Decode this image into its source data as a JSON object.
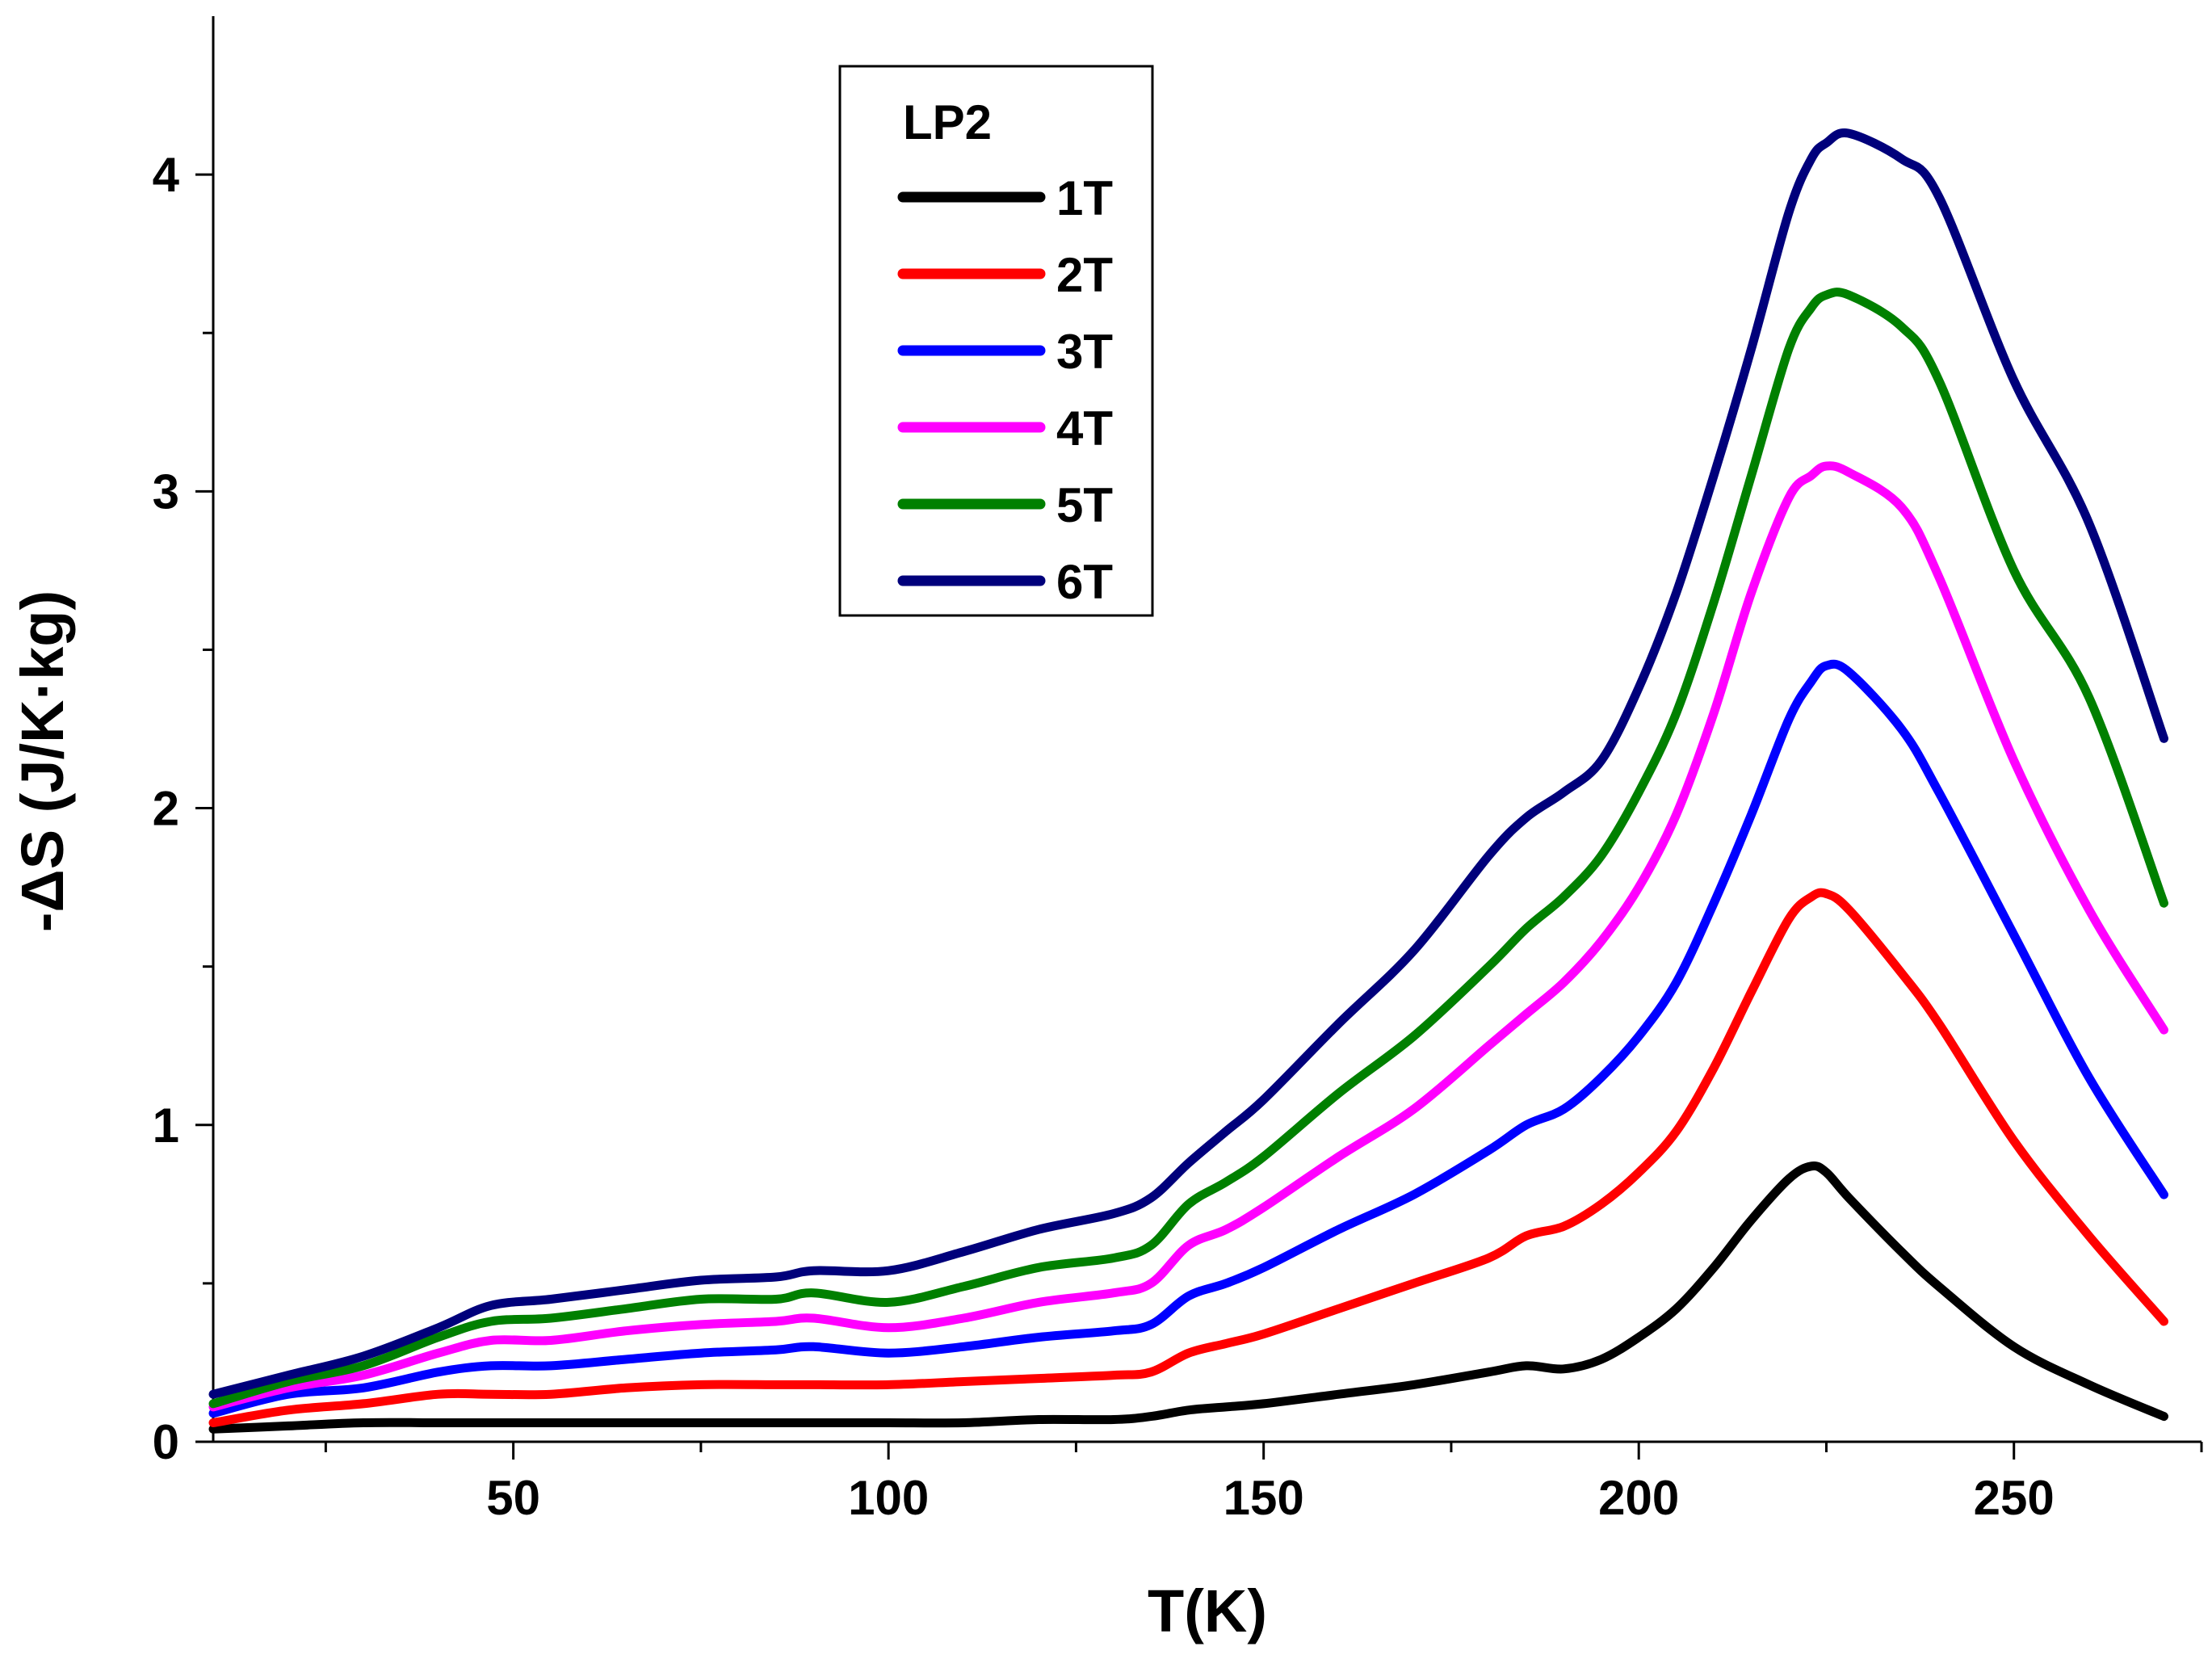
{
  "chart_data": {
    "type": "line",
    "title": "",
    "xlabel": "T(K)",
    "ylabel": "-ΔS (J/K·kg)",
    "xlim": [
      10,
      275
    ],
    "ylim": [
      0,
      4.5
    ],
    "xticks": [
      50,
      100,
      150,
      200,
      250
    ],
    "yticks": [
      0,
      1,
      2,
      3,
      4
    ],
    "xtick_labels": [
      "50",
      "100",
      "150",
      "200",
      "250"
    ],
    "ytick_labels": [
      "0",
      "1",
      "2",
      "3",
      "4"
    ],
    "grid": false,
    "legend": {
      "title": "LP2",
      "position": "top-center"
    },
    "x": [
      10,
      20,
      30,
      40,
      47,
      55,
      65,
      75,
      85,
      90,
      100,
      110,
      120,
      130,
      135,
      140,
      145,
      150,
      160,
      170,
      180,
      185,
      190,
      195,
      200,
      205,
      210,
      215,
      220,
      223,
      225,
      228,
      235,
      240,
      250,
      260,
      270
    ],
    "series": [
      {
        "name": "1T",
        "color": "#000000",
        "values": [
          0.04,
          0.05,
          0.06,
          0.06,
          0.06,
          0.06,
          0.06,
          0.06,
          0.06,
          0.06,
          0.06,
          0.06,
          0.07,
          0.07,
          0.08,
          0.1,
          0.11,
          0.12,
          0.15,
          0.18,
          0.22,
          0.24,
          0.23,
          0.26,
          0.33,
          0.42,
          0.55,
          0.7,
          0.83,
          0.87,
          0.85,
          0.77,
          0.6,
          0.49,
          0.3,
          0.18,
          0.08
        ]
      },
      {
        "name": "2T",
        "color": "#ff0000",
        "values": [
          0.06,
          0.1,
          0.12,
          0.15,
          0.15,
          0.15,
          0.17,
          0.18,
          0.18,
          0.18,
          0.18,
          0.19,
          0.2,
          0.21,
          0.22,
          0.28,
          0.31,
          0.34,
          0.42,
          0.5,
          0.58,
          0.65,
          0.68,
          0.75,
          0.85,
          0.98,
          1.18,
          1.42,
          1.65,
          1.72,
          1.73,
          1.68,
          1.48,
          1.32,
          0.95,
          0.65,
          0.38
        ]
      },
      {
        "name": "3T",
        "color": "#0000ff",
        "values": [
          0.09,
          0.15,
          0.17,
          0.22,
          0.24,
          0.24,
          0.26,
          0.28,
          0.29,
          0.3,
          0.28,
          0.3,
          0.33,
          0.35,
          0.37,
          0.46,
          0.5,
          0.55,
          0.67,
          0.78,
          0.92,
          1.0,
          1.05,
          1.15,
          1.28,
          1.45,
          1.7,
          1.98,
          2.28,
          2.4,
          2.45,
          2.43,
          2.25,
          2.05,
          1.6,
          1.15,
          0.78
        ]
      },
      {
        "name": "4T",
        "color": "#ff00ff",
        "values": [
          0.11,
          0.17,
          0.21,
          0.28,
          0.32,
          0.32,
          0.35,
          0.37,
          0.38,
          0.39,
          0.36,
          0.39,
          0.44,
          0.47,
          0.5,
          0.62,
          0.67,
          0.74,
          0.9,
          1.05,
          1.25,
          1.35,
          1.45,
          1.58,
          1.75,
          1.98,
          2.3,
          2.68,
          2.98,
          3.05,
          3.08,
          3.06,
          2.95,
          2.73,
          2.15,
          1.68,
          1.3
        ]
      },
      {
        "name": "5T",
        "color": "#008000",
        "values": [
          0.12,
          0.19,
          0.24,
          0.33,
          0.38,
          0.39,
          0.42,
          0.45,
          0.45,
          0.47,
          0.44,
          0.49,
          0.55,
          0.58,
          0.62,
          0.75,
          0.82,
          0.9,
          1.1,
          1.28,
          1.5,
          1.62,
          1.72,
          1.85,
          2.05,
          2.3,
          2.65,
          3.05,
          3.45,
          3.58,
          3.62,
          3.62,
          3.52,
          3.35,
          2.75,
          2.35,
          1.7
        ]
      },
      {
        "name": "6T",
        "color": "#00007b",
        "values": [
          0.15,
          0.21,
          0.27,
          0.36,
          0.43,
          0.45,
          0.48,
          0.51,
          0.52,
          0.54,
          0.54,
          0.6,
          0.67,
          0.72,
          0.77,
          0.88,
          0.98,
          1.08,
          1.32,
          1.55,
          1.85,
          1.97,
          2.05,
          2.15,
          2.38,
          2.68,
          3.05,
          3.45,
          3.88,
          4.05,
          4.1,
          4.13,
          4.05,
          3.93,
          3.35,
          2.9,
          2.22
        ]
      }
    ]
  }
}
